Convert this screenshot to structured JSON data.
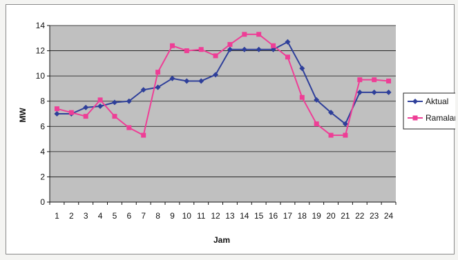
{
  "chart_data": {
    "type": "line",
    "title": "",
    "xlabel": "Jam",
    "ylabel": "MW",
    "categories": [
      "1",
      "2",
      "3",
      "4",
      "5",
      "6",
      "7",
      "8",
      "9",
      "10",
      "11",
      "12",
      "13",
      "14",
      "15",
      "16",
      "17",
      "18",
      "19",
      "20",
      "21",
      "22",
      "23",
      "24"
    ],
    "ylim": [
      0,
      14
    ],
    "yticks": [
      0,
      2,
      4,
      6,
      8,
      10,
      12,
      14
    ],
    "grid": true,
    "legend_position": "right",
    "plot_background": "#c0c0c0",
    "series": [
      {
        "name": "Aktual",
        "color": "#2e3f9a",
        "marker": "diamond",
        "values": [
          7.0,
          7.0,
          7.5,
          7.6,
          7.9,
          8.0,
          8.9,
          9.1,
          9.8,
          9.6,
          9.6,
          10.1,
          12.1,
          12.1,
          12.1,
          12.1,
          12.7,
          10.6,
          8.1,
          7.1,
          6.2,
          8.7,
          8.7,
          8.7
        ]
      },
      {
        "name": "Ramalan",
        "color": "#ee3e96",
        "marker": "square",
        "values": [
          7.4,
          7.1,
          6.8,
          8.1,
          6.8,
          5.9,
          5.3,
          10.3,
          12.4,
          12.0,
          12.1,
          11.6,
          12.5,
          13.3,
          13.3,
          12.4,
          11.5,
          8.3,
          6.2,
          5.3,
          5.3,
          9.7,
          9.7,
          9.6
        ]
      }
    ]
  }
}
